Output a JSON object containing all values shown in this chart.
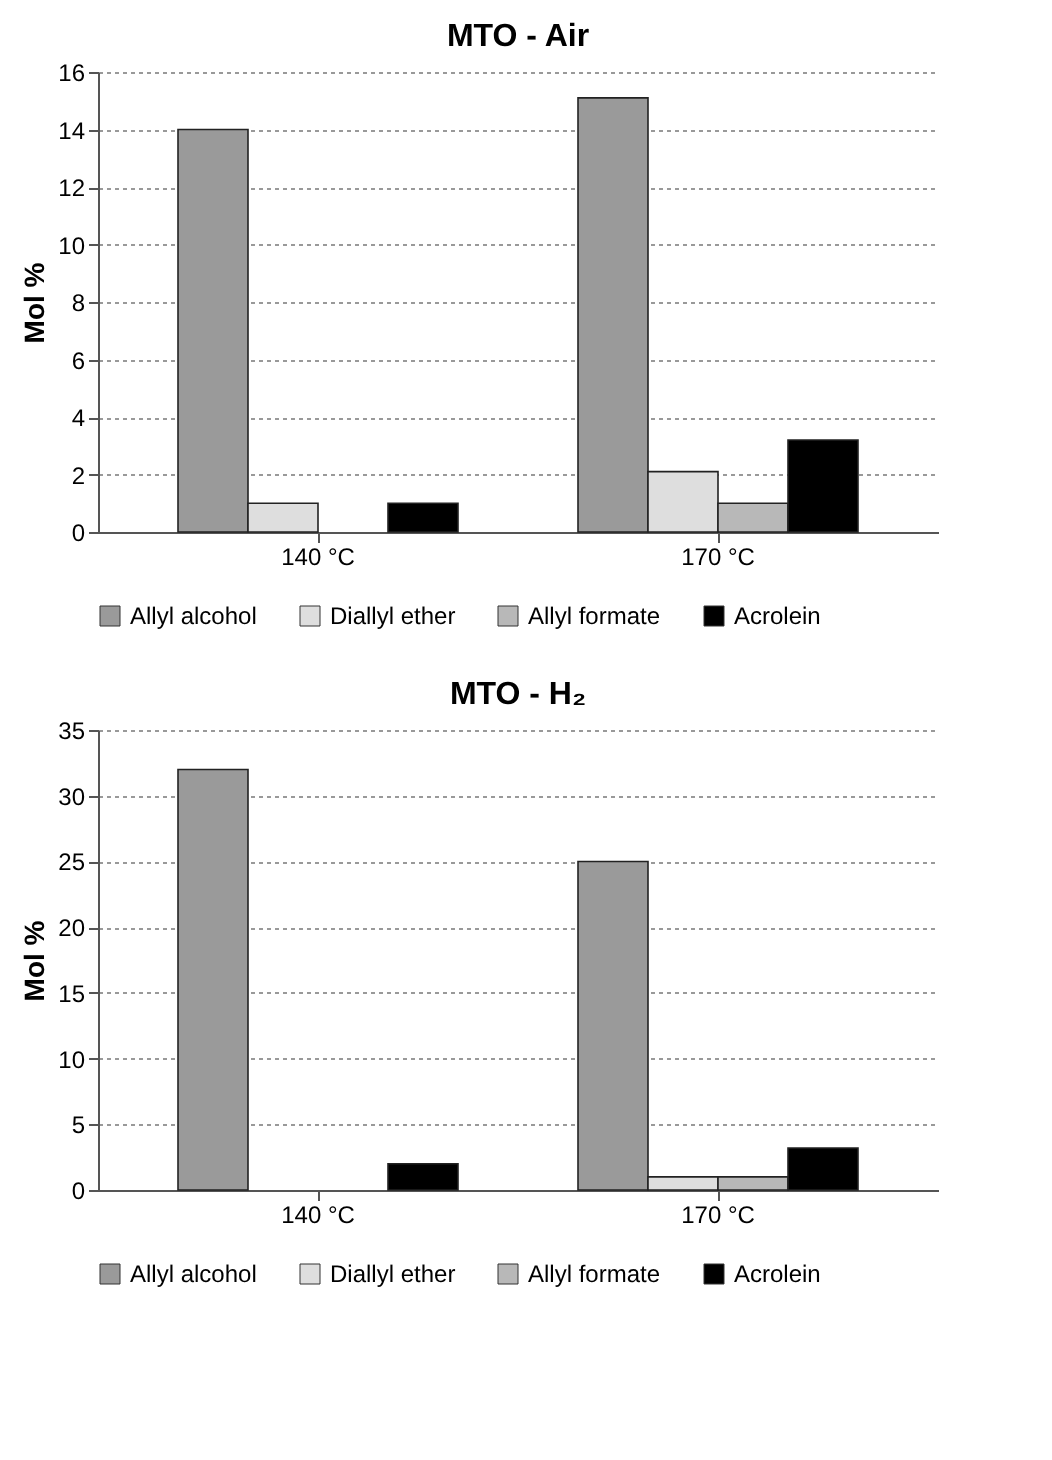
{
  "chart_data": [
    {
      "type": "bar",
      "title": "MTO - Air",
      "ylabel": "Mol %",
      "categories": [
        "140 °C",
        "170 °C"
      ],
      "ylim": [
        0,
        16
      ],
      "yticks": [
        0,
        2,
        4,
        6,
        8,
        10,
        12,
        14,
        16
      ],
      "grid": "y",
      "legend": "bottom",
      "series": [
        {
          "name": "Allyl alcohol",
          "color": "#9a9a9a",
          "values": [
            14,
            15.1
          ]
        },
        {
          "name": "Diallyl ether",
          "color": "#dedede",
          "values": [
            1,
            2.1
          ]
        },
        {
          "name": "Allyl formate",
          "color": "#b8b8b8",
          "values": [
            0,
            1
          ]
        },
        {
          "name": "Acrolein",
          "color": "#000000",
          "values": [
            1,
            3.2
          ]
        }
      ]
    },
    {
      "type": "bar",
      "title": "MTO - H₂",
      "ylabel": "Mol %",
      "categories": [
        "140 °C",
        "170 °C"
      ],
      "ylim": [
        0,
        35
      ],
      "yticks": [
        0,
        5,
        10,
        15,
        20,
        25,
        30,
        35
      ],
      "grid": "y",
      "legend": "bottom",
      "series": [
        {
          "name": "Allyl alcohol",
          "color": "#9a9a9a",
          "values": [
            32,
            25
          ]
        },
        {
          "name": "Diallyl ether",
          "color": "#dedede",
          "values": [
            0,
            1
          ]
        },
        {
          "name": "Allyl formate",
          "color": "#b8b8b8",
          "values": [
            0,
            1
          ]
        },
        {
          "name": "Acrolein",
          "color": "#000000",
          "values": [
            2,
            3.2
          ]
        }
      ]
    }
  ]
}
